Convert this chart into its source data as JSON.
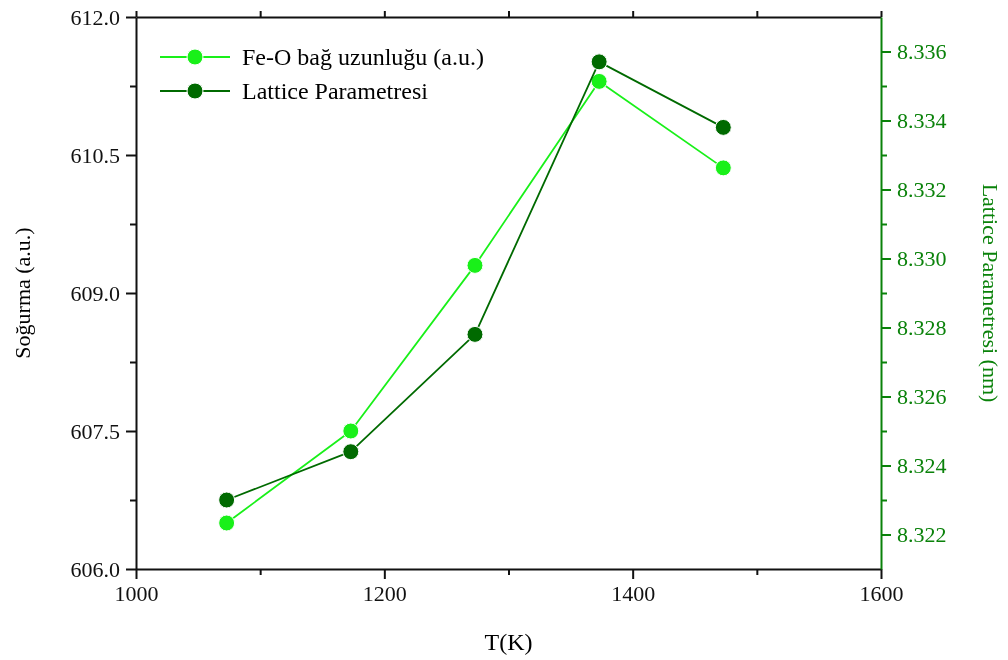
{
  "chart_data": {
    "type": "line",
    "xlabel": "T(K)",
    "ylabel": "Soğurma (a.u.)",
    "y2label": "Lattice Parametresi (nm)",
    "x": [
      1073,
      1173,
      1273,
      1373,
      1473
    ],
    "series": [
      {
        "name": "Fe-O bağ uzunluğu (a.u.)",
        "color": "#19f019",
        "values": [
          606.5,
          607.5,
          609.3,
          611.3,
          610.36
        ]
      },
      {
        "name": "Lattice Parametresi",
        "color": "#006a00",
        "axis": "y2",
        "values": [
          8.323,
          8.3244,
          8.3278,
          8.3357,
          8.3338
        ]
      }
    ],
    "xlim": [
      1000,
      1600
    ],
    "xticks": [
      1000,
      {
        "value": 1100,
        "label": null
      },
      1200,
      {
        "value": 1300,
        "label": null
      },
      1400,
      {
        "value": 1500,
        "label": null
      },
      1600
    ],
    "ylim": [
      606,
      612
    ],
    "yticks": [
      {
        "value": 606,
        "label": "606.0"
      },
      {
        "value": 606.75,
        "label": null
      },
      607.5,
      {
        "value": 608.25,
        "label": null
      },
      {
        "value": 609,
        "label": "609.0"
      },
      {
        "value": 609.75,
        "label": null
      },
      610.5,
      {
        "value": 611.25,
        "label": null
      },
      {
        "value": 612,
        "label": "612.0"
      }
    ],
    "y2lim": [
      8.321,
      8.337
    ],
    "y2ticks": [
      8.322,
      {
        "value": 8.323,
        "label": null
      },
      8.324,
      {
        "value": 8.325,
        "label": null
      },
      8.326,
      {
        "value": 8.327,
        "label": null
      },
      {
        "value": 8.328,
        "label": "8.328"
      },
      {
        "value": 8.329,
        "label": null
      },
      {
        "value": 8.33,
        "label": "8.330"
      },
      {
        "value": 8.331,
        "label": null
      },
      8.332,
      {
        "value": 8.333,
        "label": null
      },
      8.334,
      {
        "value": 8.335,
        "label": null
      },
      8.336
    ],
    "legend": "top left",
    "marker": "circle",
    "line_style": "solid",
    "grid": false
  }
}
